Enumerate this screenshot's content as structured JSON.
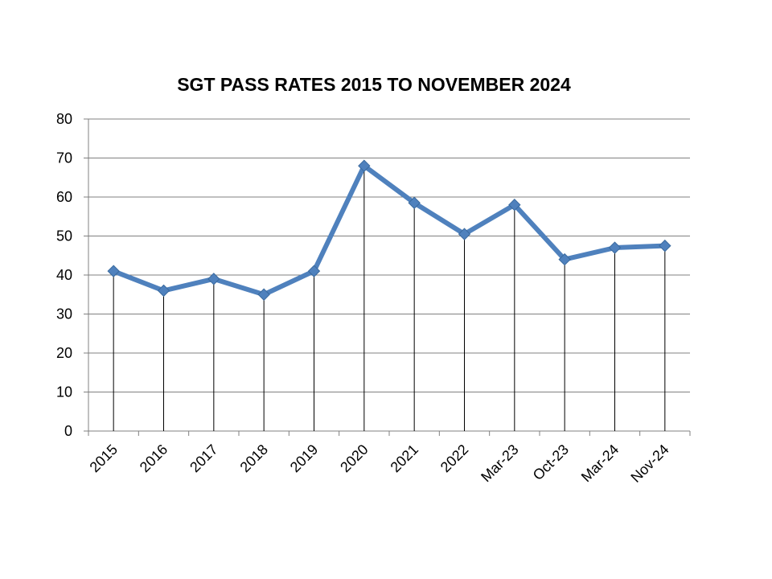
{
  "chart_data": {
    "type": "line",
    "title": "SGT PASS RATES 2015 TO NOVEMBER 2024",
    "xlabel": "",
    "ylabel": "",
    "categories": [
      "2015",
      "2016",
      "2017",
      "2018",
      "2019",
      "2020",
      "2021",
      "2022",
      "Mar-23",
      "Oct-23",
      "Mar-24",
      "Nov-24"
    ],
    "series": [
      {
        "values": [
          41,
          36,
          39,
          35,
          41,
          68,
          58.5,
          50.5,
          58,
          44,
          47,
          47.5
        ]
      }
    ],
    "ylim": [
      0,
      80
    ],
    "yticks": [
      0,
      10,
      20,
      30,
      40,
      50,
      60,
      70,
      80
    ],
    "grid": true,
    "drop_lines": true,
    "marker": "diamond",
    "legend": "none",
    "colors": {
      "line": "#4F81BD",
      "marker": "#4F81BD",
      "grid": "#808080",
      "drop_line": "#000000"
    }
  }
}
